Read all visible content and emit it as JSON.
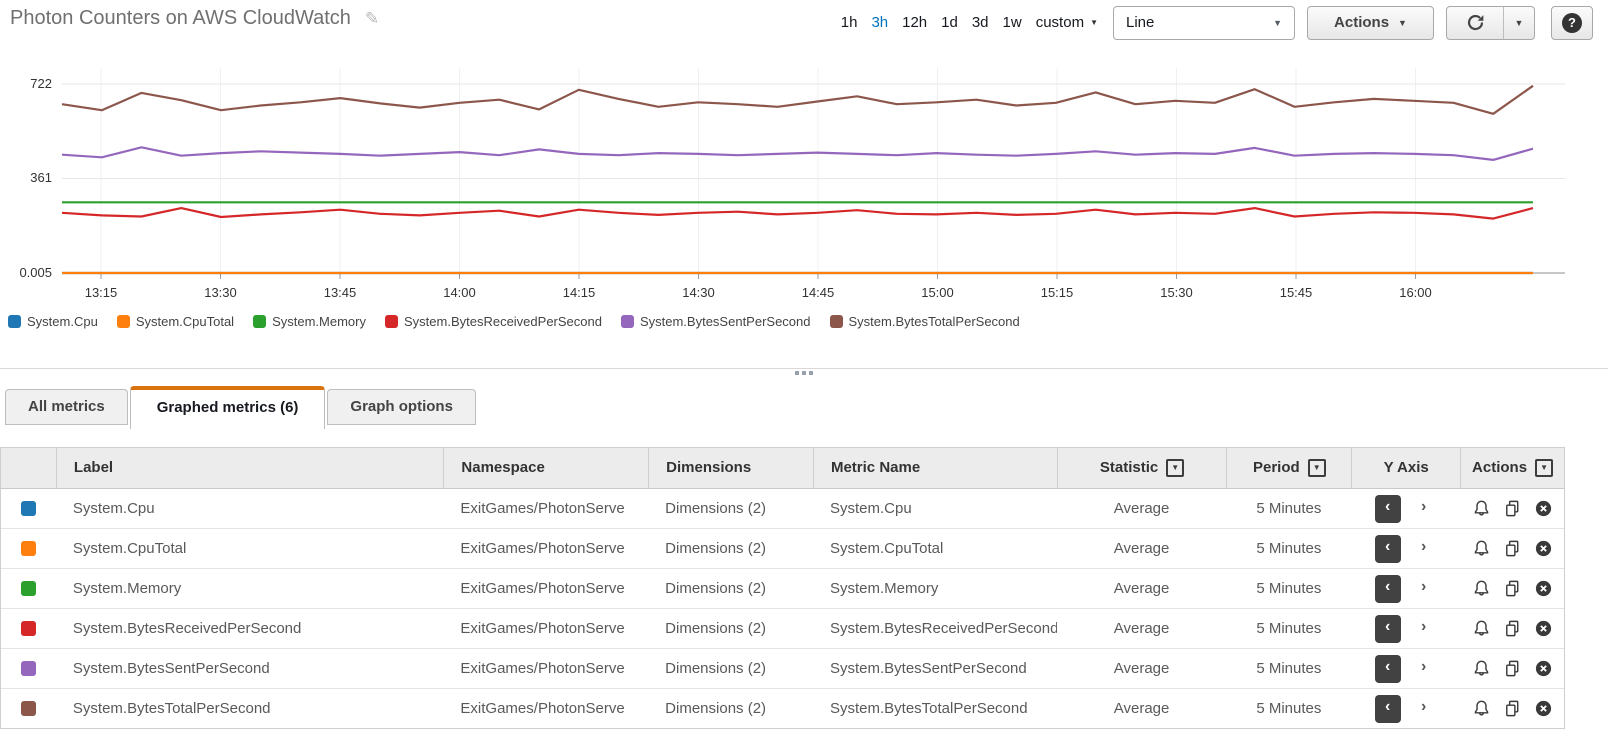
{
  "header": {
    "title": "Photon Counters on AWS CloudWatch",
    "time_ranges": [
      {
        "label": "1h",
        "active": false
      },
      {
        "label": "3h",
        "active": true
      },
      {
        "label": "12h",
        "active": false
      },
      {
        "label": "1d",
        "active": false
      },
      {
        "label": "3d",
        "active": false
      },
      {
        "label": "1w",
        "active": false
      },
      {
        "label": "custom",
        "active": false,
        "has_caret": true
      }
    ],
    "chart_type_selected": "Line",
    "actions_label": "Actions",
    "help_label": "?"
  },
  "chart_data": {
    "type": "line",
    "title": "Photon Counters on AWS CloudWatch",
    "xlabel": "",
    "ylabel": "",
    "y_ticks": [
      "722",
      "361",
      "0.005"
    ],
    "y_tick_values": [
      722,
      361,
      0.005
    ],
    "ylim": [
      0.005,
      722
    ],
    "grid": true,
    "legend_position": "bottom",
    "x_tick_labels": [
      "13:15",
      "13:30",
      "13:45",
      "14:00",
      "14:15",
      "14:30",
      "14:45",
      "15:00",
      "15:15",
      "15:30",
      "15:45",
      "16:00"
    ],
    "x_times": [
      "13:10",
      "13:15",
      "13:20",
      "13:25",
      "13:30",
      "13:35",
      "13:40",
      "13:45",
      "13:50",
      "13:55",
      "14:00",
      "14:05",
      "14:10",
      "14:15",
      "14:20",
      "14:25",
      "14:30",
      "14:35",
      "14:40",
      "14:45",
      "14:50",
      "14:55",
      "15:00",
      "15:05",
      "15:10",
      "15:15",
      "15:20",
      "15:25",
      "15:30",
      "15:35",
      "15:40",
      "15:45",
      "15:50",
      "15:55",
      "16:00",
      "16:05",
      "16:10",
      "16:15"
    ],
    "period_minutes": 5,
    "series": [
      {
        "name": "System.Cpu",
        "color": "#1f77b4",
        "values": [
          0.005,
          0.005,
          0.005,
          0.005,
          0.005,
          0.005,
          0.005,
          0.005,
          0.005,
          0.005,
          0.005,
          0.005,
          0.005,
          0.005,
          0.005,
          0.005,
          0.005,
          0.005,
          0.005,
          0.005,
          0.005,
          0.005,
          0.005,
          0.005,
          0.005,
          0.005,
          0.005,
          0.005,
          0.005,
          0.005,
          0.005,
          0.005,
          0.005,
          0.005,
          0.005,
          0.005,
          0.005,
          0.005
        ]
      },
      {
        "name": "System.CpuTotal",
        "color": "#ff7f0e",
        "values": [
          0.005,
          0.005,
          0.005,
          0.005,
          0.005,
          0.005,
          0.005,
          0.005,
          0.005,
          0.005,
          0.005,
          0.005,
          0.005,
          0.005,
          0.005,
          0.005,
          0.005,
          0.005,
          0.005,
          0.005,
          0.005,
          0.005,
          0.005,
          0.005,
          0.005,
          0.005,
          0.005,
          0.005,
          0.005,
          0.005,
          0.005,
          0.005,
          0.005,
          0.005,
          0.005,
          0.005,
          0.005,
          0.005
        ]
      },
      {
        "name": "System.Memory",
        "color": "#2ca02c",
        "values": [
          270,
          270,
          270,
          270,
          270,
          270,
          270,
          270,
          270,
          270,
          270,
          270,
          270,
          270,
          270,
          270,
          270,
          270,
          270,
          270,
          270,
          270,
          270,
          270,
          270,
          270,
          270,
          270,
          270,
          270,
          270,
          270,
          270,
          270,
          270,
          270,
          270,
          270
        ]
      },
      {
        "name": "System.BytesReceivedPerSecond",
        "color": "#d62728",
        "values": [
          230,
          220,
          216,
          248,
          214,
          224,
          232,
          242,
          226,
          220,
          230,
          238,
          216,
          242,
          230,
          222,
          230,
          234,
          224,
          230,
          240,
          226,
          224,
          230,
          222,
          226,
          242,
          224,
          230,
          226,
          248,
          216,
          226,
          232,
          230,
          224,
          208,
          248
        ]
      },
      {
        "name": "System.BytesSentPerSecond",
        "color": "#9467bd",
        "values": [
          452,
          442,
          480,
          448,
          458,
          465,
          460,
          455,
          448,
          455,
          462,
          450,
          472,
          455,
          450,
          458,
          455,
          450,
          455,
          460,
          455,
          450,
          458,
          452,
          448,
          455,
          465,
          452,
          458,
          455,
          478,
          448,
          455,
          458,
          455,
          450,
          432,
          475
        ]
      },
      {
        "name": "System.BytesTotalPerSecond",
        "color": "#8c564b",
        "values": [
          645,
          622,
          688,
          660,
          622,
          640,
          652,
          668,
          648,
          632,
          650,
          662,
          625,
          700,
          665,
          635,
          652,
          645,
          635,
          655,
          675,
          645,
          652,
          662,
          640,
          650,
          690,
          645,
          658,
          650,
          702,
          635,
          652,
          665,
          658,
          650,
          608,
          715
        ]
      }
    ]
  },
  "tabs": [
    {
      "label": "All metrics",
      "active": false
    },
    {
      "label": "Graphed metrics (6)",
      "active": true
    },
    {
      "label": "Graph options",
      "active": false
    }
  ],
  "table": {
    "columns": [
      {
        "label": "Label"
      },
      {
        "label": "Namespace"
      },
      {
        "label": "Dimensions"
      },
      {
        "label": "Metric Name"
      },
      {
        "label": "Statistic",
        "filter": true
      },
      {
        "label": "Period",
        "filter": true
      },
      {
        "label": "Y Axis"
      },
      {
        "label": "Actions",
        "filter": true
      }
    ],
    "rows": [
      {
        "color": "#1f77b4",
        "label": "System.Cpu",
        "namespace": "ExitGames/PhotonServe",
        "dimensions": "Dimensions (2)",
        "metric_name": "System.Cpu",
        "statistic": "Average",
        "period": "5 Minutes"
      },
      {
        "color": "#ff7f0e",
        "label": "System.CpuTotal",
        "namespace": "ExitGames/PhotonServe",
        "dimensions": "Dimensions (2)",
        "metric_name": "System.CpuTotal",
        "statistic": "Average",
        "period": "5 Minutes"
      },
      {
        "color": "#2ca02c",
        "label": "System.Memory",
        "namespace": "ExitGames/PhotonServe",
        "dimensions": "Dimensions (2)",
        "metric_name": "System.Memory",
        "statistic": "Average",
        "period": "5 Minutes"
      },
      {
        "color": "#d62728",
        "label": "System.BytesReceivedPerSecond",
        "namespace": "ExitGames/PhotonServe",
        "dimensions": "Dimensions (2)",
        "metric_name": "System.BytesReceivedPerSecond",
        "statistic": "Average",
        "period": "5 Minutes"
      },
      {
        "color": "#9467bd",
        "label": "System.BytesSentPerSecond",
        "namespace": "ExitGames/PhotonServe",
        "dimensions": "Dimensions (2)",
        "metric_name": "System.BytesSentPerSecond",
        "statistic": "Average",
        "period": "5 Minutes"
      },
      {
        "color": "#8c564b",
        "label": "System.BytesTotalPerSecond",
        "namespace": "ExitGames/PhotonServe",
        "dimensions": "Dimensions (2)",
        "metric_name": "System.BytesTotalPerSecond",
        "statistic": "Average",
        "period": "5 Minutes"
      }
    ]
  }
}
